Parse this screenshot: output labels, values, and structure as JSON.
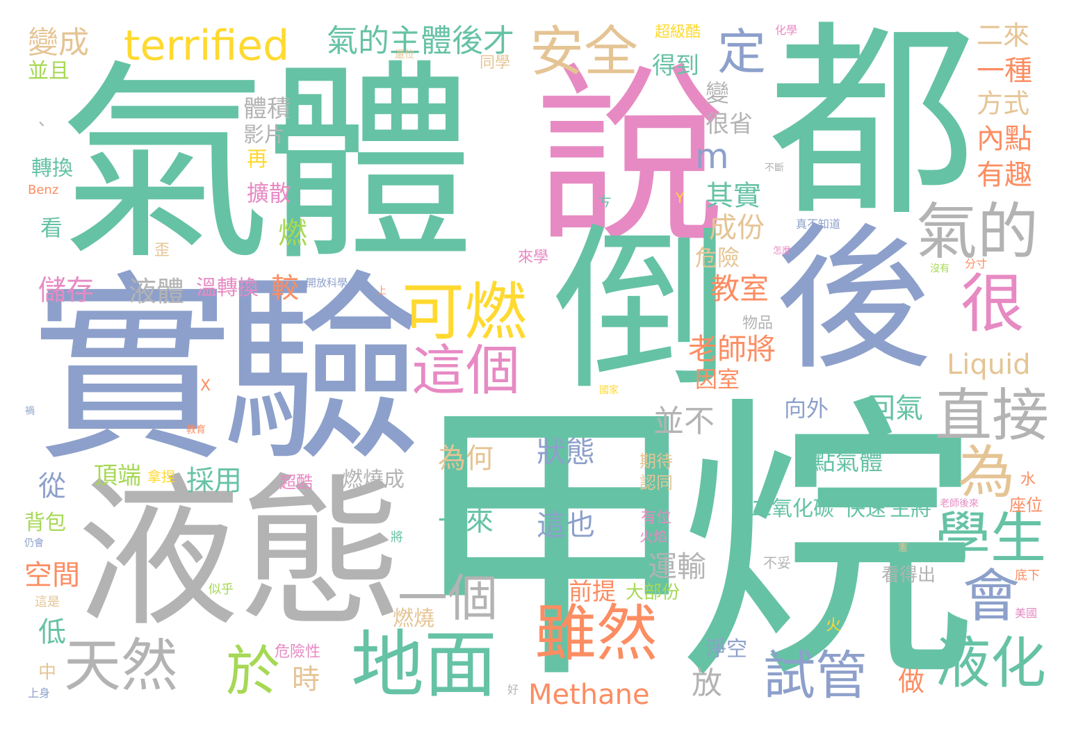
{
  "colors": {
    "teal": "#66c2a5",
    "orange": "#fc8d62",
    "blue": "#8da0cb",
    "pink": "#e78ac3",
    "lime": "#a6d854",
    "yellow": "#ffd92f",
    "tan": "#e5c494",
    "gray": "#b3b3b3",
    "background": "#ffffff"
  },
  "words": {
    "w001": "氣體",
    "w002": "說",
    "w003": "都",
    "w004": "實驗",
    "w005": "甲烷",
    "w006": "液態",
    "w007": "倒",
    "w008": "後",
    "w009": "terrified",
    "w010": "安全",
    "w011": "定",
    "w012": "氣的主體後才",
    "w013": "變成",
    "w014": "並且",
    "w015": "可燃",
    "w016": "這個",
    "w017": "氣的",
    "w018": "很",
    "w019": "直接",
    "w020": "學生",
    "w021": "為",
    "w022": "會",
    "w023": "液化",
    "w024": "試管",
    "w025": "地面",
    "w026": "雖然",
    "w027": "天然",
    "w028": "於",
    "w029": "Methane",
    "w030": "Liquid",
    "w031": "一個",
    "w032": "為何",
    "w033": "狀態",
    "w034": "一來",
    "w035": "這也",
    "w036": "點氣體",
    "w037": "回氣",
    "w038": "二來",
    "w039": "一種",
    "w040": "方式",
    "w041": "內點",
    "w042": "有趣",
    "w043": "得到",
    "w044": "變",
    "w045": "很省",
    "w046": "m",
    "w047": "其實",
    "w048": "成份",
    "w049": "危險",
    "w050": "教室",
    "w051": "老師將",
    "w052": "因室",
    "w053": "向外",
    "w054": "並不",
    "w055": "運輸",
    "w056": "前提",
    "w057": "大部份",
    "w058": "放",
    "w059": "做",
    "w060": "淨空",
    "w061": "二氧化碳",
    "w062": "快速",
    "w063": "生將",
    "w064": "體積",
    "w065": "影片",
    "w066": "再",
    "w067": "擴散",
    "w068": "燃",
    "w069": "液體",
    "w070": "溫轉換",
    "w071": "較",
    "w072": "儲存",
    "w073": "轉換",
    "w074": "Benz",
    "w075": "看",
    "w076": "從",
    "w077": "背包",
    "w078": "空間",
    "w079": "低",
    "w080": "中",
    "w081": "上身",
    "w082": "頂端",
    "w083": "拿捏",
    "w084": "採用",
    "w085": "超酷",
    "w086": "燃燒成",
    "w087": "燃燒",
    "w088": "危險性",
    "w089": "時",
    "w090": "似乎",
    "w091": "這是",
    "w092": "仍會",
    "w093": "將",
    "w094": "好",
    "w095": "火",
    "w096": "火焰",
    "w097": "有位",
    "w098": "認同",
    "w099": "期待",
    "w100": "國家",
    "w101": "教育",
    "w102": "X",
    "w103": "禍",
    "w104": "開放科學",
    "w105": "上",
    "w106": "物品",
    "w107": "看得出",
    "w108": "不妥",
    "w109": "底下",
    "w110": "美國",
    "w111": "座位",
    "w112": "老師後來",
    "w113": "水",
    "w114": "沒有",
    "w115": "分寸",
    "w116": "真不知道",
    "w117": "怎麼",
    "w118": "不斷",
    "w119": "Y",
    "w120": "ㄘ",
    "w121": "來學",
    "w122": "歪",
    "w123": "超級酷",
    "w124": "同學",
    "w125": "還位",
    "w126": "化學",
    "w127": "、",
    "w128": "憲"
  }
}
